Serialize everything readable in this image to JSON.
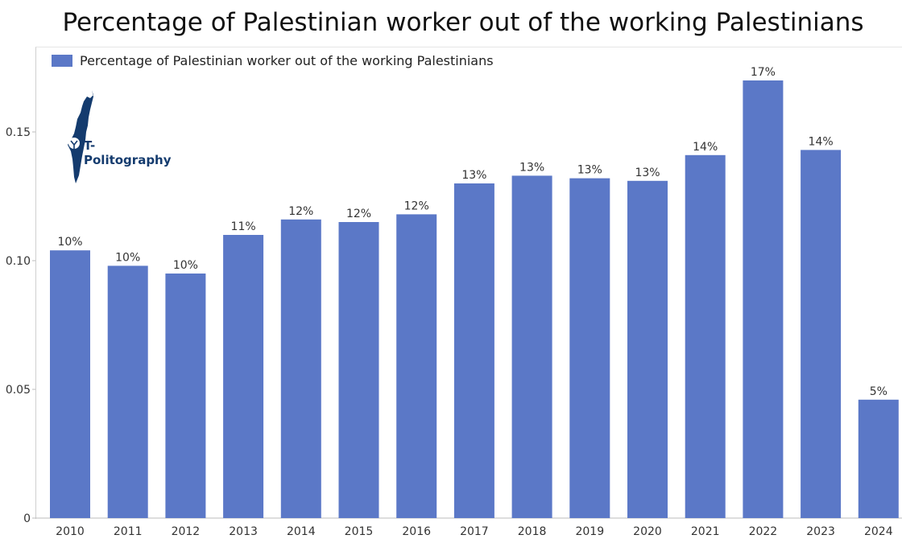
{
  "chart_data": {
    "type": "bar",
    "title": "Percentage of Palestinian worker out of the working Palestinians",
    "legend": {
      "placement": "top-left",
      "entries": [
        "Percentage of Palestinian worker out of the working Palestinians"
      ]
    },
    "series": [
      {
        "name": "Percentage of Palestinian worker out of the working Palestinians",
        "color": "#5b78c7",
        "values": [
          0.104,
          0.098,
          0.095,
          0.11,
          0.116,
          0.115,
          0.118,
          0.13,
          0.133,
          0.132,
          0.131,
          0.141,
          0.17,
          0.143,
          0.046
        ],
        "data_labels": [
          "10%",
          "10%",
          "10%",
          "11%",
          "12%",
          "12%",
          "12%",
          "13%",
          "13%",
          "13%",
          "13%",
          "14%",
          "17%",
          "14%",
          "5%"
        ]
      }
    ],
    "categories": [
      "2010",
      "2011",
      "2012",
      "2013",
      "2014",
      "2015",
      "2016",
      "2017",
      "2018",
      "2019",
      "2020",
      "2021",
      "2022",
      "2023",
      "2024"
    ],
    "yticks": [
      0,
      0.05,
      0.1,
      0.15
    ],
    "ytick_labels": [
      "0",
      "0.05",
      "0.10",
      "0.15"
    ],
    "ylim": [
      0,
      0.18
    ],
    "grid": false
  },
  "watermark": {
    "text": "T-Politography",
    "icon": "map-icon"
  }
}
